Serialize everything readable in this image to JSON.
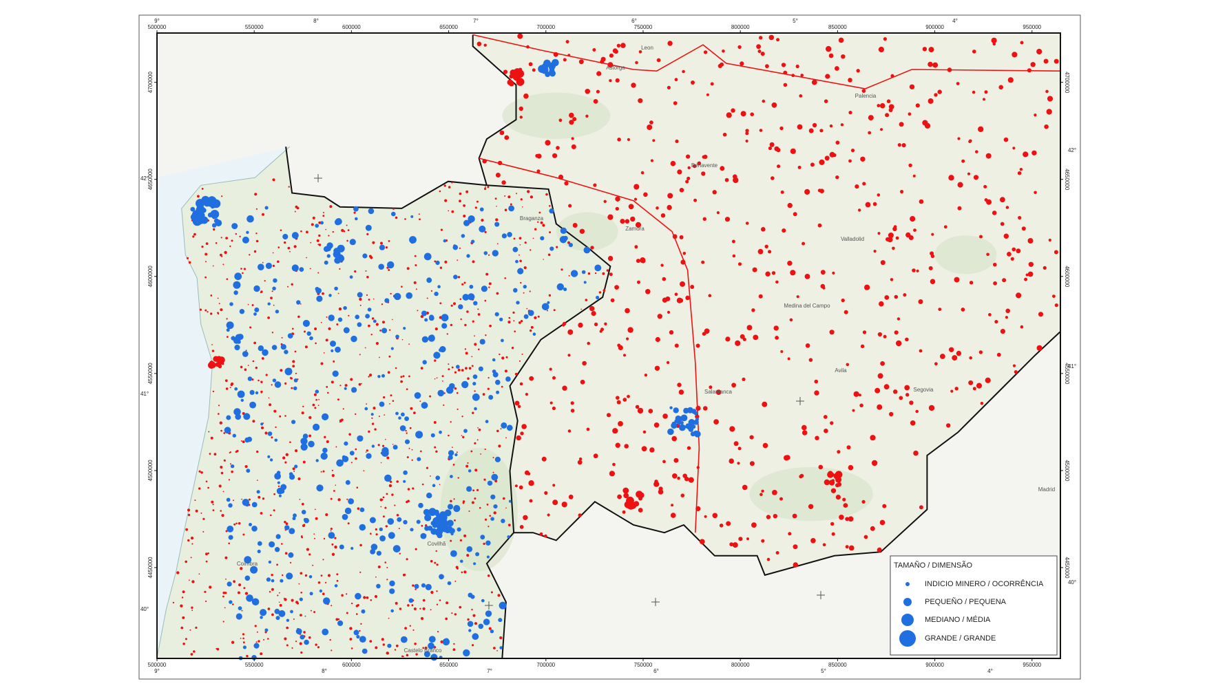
{
  "map": {
    "xticks": [
      500000,
      550000,
      600000,
      650000,
      700000,
      750000,
      800000,
      850000,
      900000,
      950000
    ],
    "xlim": [
      500000,
      964600
    ],
    "yticks": [
      4450000,
      4500000,
      4550000,
      4600000,
      4650000,
      4700000
    ],
    "ylim": [
      4403200,
      4725400
    ],
    "top_degrees": [
      "9°",
      "8°",
      "7°",
      "6°",
      "5°",
      "4°"
    ],
    "bottom_degrees": [
      "9°",
      "8°",
      "7°",
      "6°",
      "5°",
      "4°"
    ],
    "left_degrees": [
      "42°",
      "41°",
      "40°"
    ],
    "right_degrees": [
      "42°",
      "41°",
      "40°"
    ],
    "places": [
      "Zamora",
      "Salamanca",
      "Valladolid",
      "Segovia",
      "Avila",
      "Braganza",
      "Coimbra",
      "Madrid",
      "Medina del Campo",
      "Palencia",
      "Leon",
      "Castelo Branco",
      "Covilhã",
      "Astorga",
      "Benavente"
    ],
    "legend": {
      "title": "TAMAÑO / DIMENSÃO",
      "items": [
        "INDICIO MINERO / OCORRÊNCIA",
        "PEQUEÑO / PEQUENA",
        "MEDIANO / MÉDIA",
        "GRANDE / GRANDE"
      ],
      "color": "#1f6fe0"
    },
    "occurrence_colors": [
      "#1f6fe0",
      "#ee1111"
    ]
  }
}
